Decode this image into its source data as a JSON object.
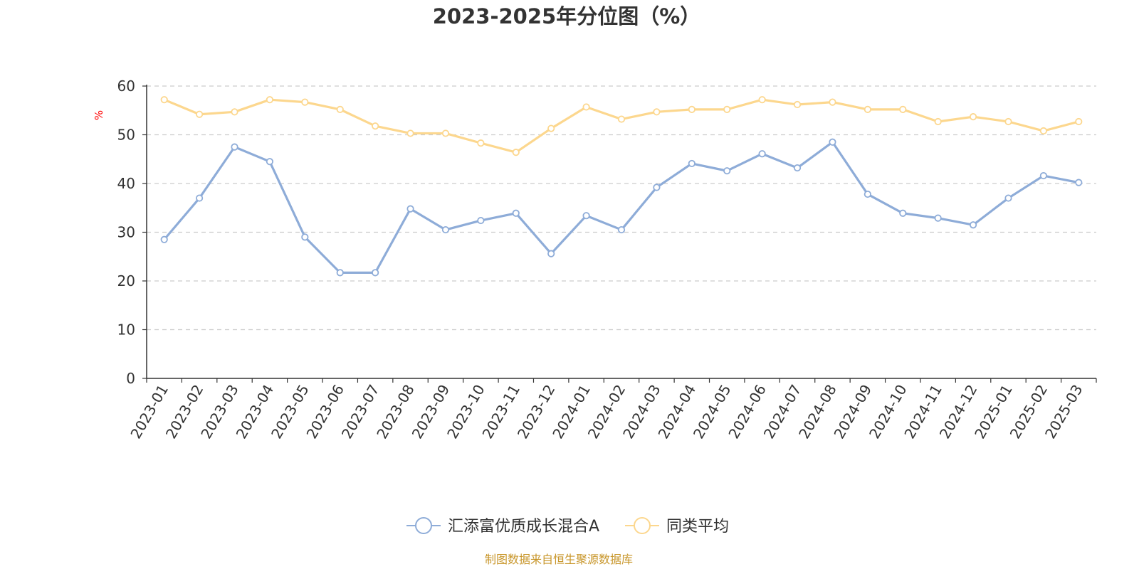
{
  "chart_data": {
    "type": "line",
    "title": "2023-2025年分位图（%）",
    "ylabel": "%",
    "xlabel": "",
    "ylim": [
      0,
      60
    ],
    "yticks": [
      0,
      10,
      20,
      30,
      40,
      50,
      60
    ],
    "grid": "horizontal dashed",
    "legend_position": "bottom-center",
    "categories": [
      "2023-01",
      "2023-02",
      "2023-03",
      "2023-04",
      "2023-05",
      "2023-06",
      "2023-07",
      "2023-08",
      "2023-09",
      "2023-10",
      "2023-11",
      "2023-12",
      "2024-01",
      "2024-02",
      "2024-03",
      "2024-04",
      "2024-05",
      "2024-06",
      "2024-07",
      "2024-08",
      "2024-09",
      "2024-10",
      "2024-11",
      "2024-12",
      "2025-01",
      "2025-02",
      "2025-03"
    ],
    "series": [
      {
        "name": "汇添富优质成长混合A",
        "color": "#8eacd8",
        "values": [
          28.5,
          37.0,
          47.5,
          44.5,
          29.0,
          21.7,
          21.7,
          34.8,
          30.5,
          32.4,
          33.9,
          25.6,
          33.4,
          30.5,
          39.2,
          44.1,
          42.6,
          46.1,
          43.2,
          48.5,
          37.8,
          33.9,
          32.9,
          31.5,
          37.0,
          41.6,
          40.2
        ]
      },
      {
        "name": "同类平均",
        "color": "#fcd78e",
        "values": [
          57.2,
          54.2,
          54.7,
          57.2,
          56.7,
          55.2,
          51.8,
          50.3,
          50.3,
          48.3,
          46.4,
          51.3,
          55.7,
          53.2,
          54.7,
          55.2,
          55.2,
          57.2,
          56.2,
          56.7,
          55.2,
          55.2,
          52.7,
          53.7,
          52.7,
          50.8,
          52.7
        ]
      }
    ]
  },
  "source_note": "制图数据来自恒生聚源数据库"
}
